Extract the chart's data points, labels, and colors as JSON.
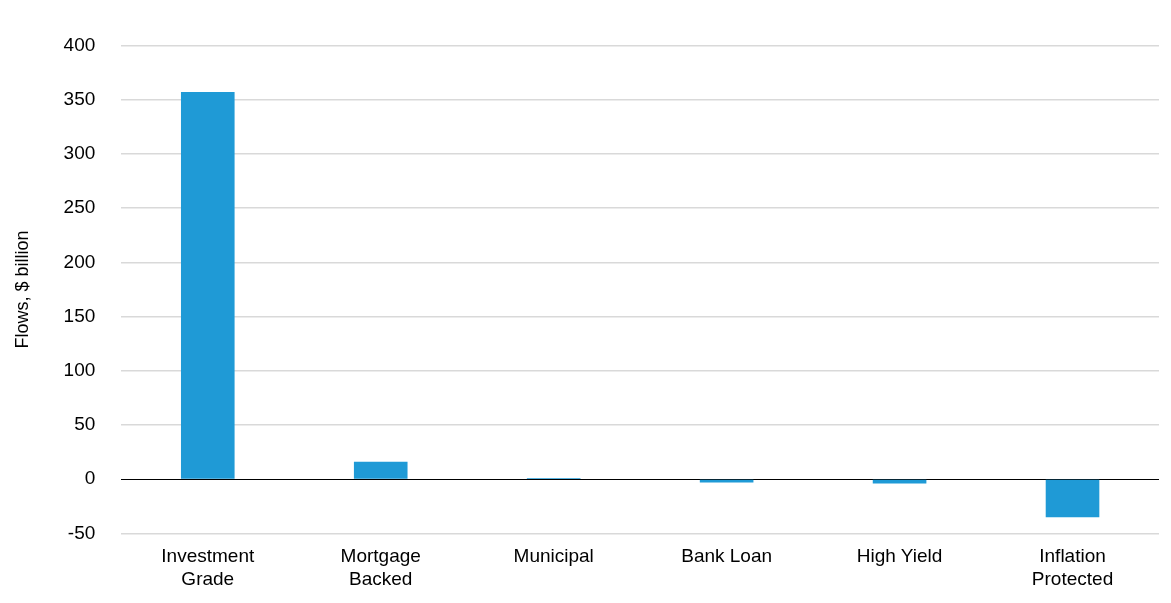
{
  "chart_data": {
    "type": "bar",
    "ylabel": "Flows, $ billion",
    "categories": [
      "Investment Grade",
      "Mortgage Backed",
      "Municipal",
      "Bank Loan",
      "High Yield",
      "Inflation Protected"
    ],
    "values": [
      357,
      16,
      1,
      -3,
      -4,
      -35
    ],
    "color": "#1f9ad6",
    "ylim": [
      -50,
      400
    ],
    "yticks": [
      -50,
      0,
      50,
      100,
      150,
      200,
      250,
      300,
      350,
      400
    ],
    "grid": "y",
    "legend": false
  }
}
